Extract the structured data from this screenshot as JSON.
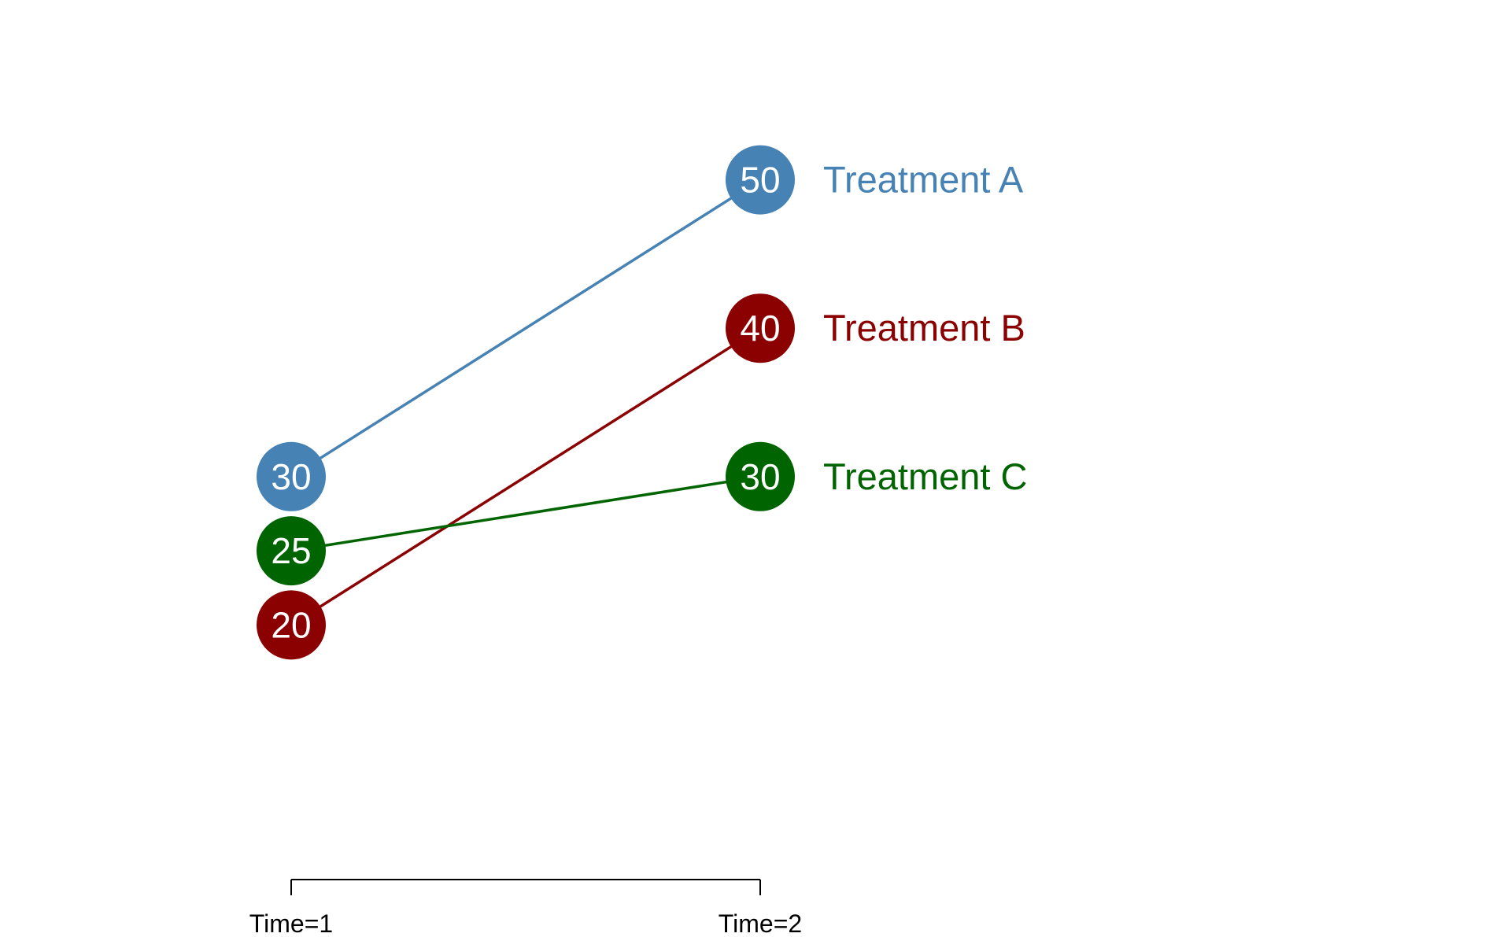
{
  "chart_data": {
    "type": "line",
    "subtype": "slopegraph",
    "title": "",
    "xlabel": "",
    "ylabel": "",
    "categories": [
      "Time=1",
      "Time=2"
    ],
    "ylim": [
      10,
      60
    ],
    "grid": false,
    "legend_placement": "right (direct labels)",
    "series": [
      {
        "name": "Treatment A",
        "values": [
          30,
          50
        ],
        "color": "#4682B4"
      },
      {
        "name": "Treatment B",
        "values": [
          20,
          40
        ],
        "color": "#8B0000"
      },
      {
        "name": "Treatment C",
        "values": [
          25,
          30
        ],
        "color": "#006400"
      }
    ]
  }
}
